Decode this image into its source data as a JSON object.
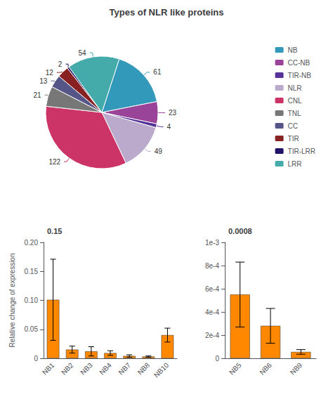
{
  "chart_data": [
    {
      "type": "pie",
      "title": "Types of NLR like proteins",
      "categories": [
        "NB",
        "CC-NB",
        "TIR-NB",
        "NLR",
        "CNL",
        "TNL",
        "CC",
        "TIR",
        "TIR-LRR",
        "LRR"
      ],
      "values": [
        61,
        23,
        4,
        49,
        122,
        21,
        13,
        12,
        2,
        54
      ],
      "colors": [
        "#3399BB",
        "#994499",
        "#553399",
        "#BBAACC",
        "#CC3366",
        "#777777",
        "#555588",
        "#882222",
        "#221166",
        "#44AAAA"
      ],
      "data_labels": true,
      "legend": "right"
    },
    {
      "type": "bar",
      "annotation": "0.15",
      "ylabel": "Relative change of expression",
      "categories": [
        "NB1",
        "NB2",
        "NB3",
        "NB4",
        "NB7",
        "NB8",
        "NB10"
      ],
      "values": [
        0.101,
        0.015,
        0.012,
        0.009,
        0.004,
        0.003,
        0.04
      ],
      "errors": [
        0.07,
        0.006,
        0.008,
        0.004,
        0.002,
        0.001,
        0.012
      ],
      "color": "#FF8800",
      "ylim": [
        0,
        0.2
      ],
      "yticks": [
        0,
        0.05,
        {
          "value": 0.1,
          "label": "0.10"
        },
        0.15,
        {
          "value": 0.2,
          "label": "0.20"
        }
      ],
      "grid": false
    },
    {
      "type": "bar",
      "annotation": "0.0008",
      "categories": [
        "NB5",
        "NB6",
        "NB9"
      ],
      "values": [
        0.00055,
        0.00028,
        5.5e-05
      ],
      "errors": [
        0.00028,
        0.00015,
        2e-05
      ],
      "color": "#FF8800",
      "ylim": [
        0,
        0.001
      ],
      "yticks": [
        0,
        {
          "value": 0.0002,
          "label": "2e-4"
        },
        {
          "value": 0.0004,
          "label": "4e-4"
        },
        {
          "value": 0.0006,
          "label": "6e-4"
        },
        {
          "value": 0.0008,
          "label": "8e-4"
        },
        {
          "value": 0.001,
          "label": "1e-3"
        }
      ],
      "grid": false
    }
  ]
}
